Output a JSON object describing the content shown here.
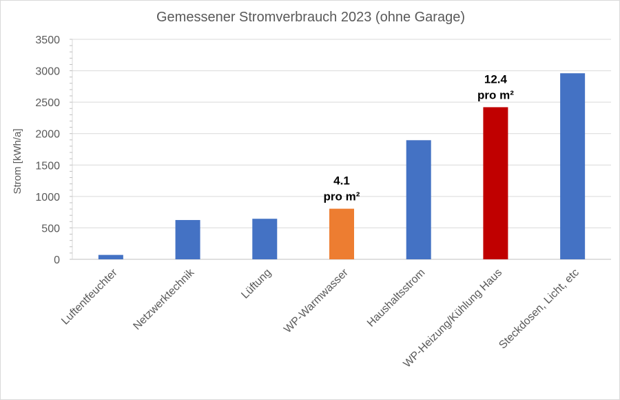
{
  "chart_data": {
    "type": "bar",
    "title": "Gemessener Stromverbrauch 2023 (ohne Garage)",
    "ylabel": "Strom [kWh/a]",
    "xlabel": "",
    "ylim": [
      0,
      3500
    ],
    "yticks": [
      0,
      500,
      1000,
      1500,
      2000,
      2500,
      3000,
      3500
    ],
    "grid": true,
    "categories": [
      "Luftentfeuchter",
      "Netzwerktechnik",
      "Lüftung",
      "WP-Warmwasser",
      "Haushaltsstrom",
      "WP-Heizung/Kühlung Haus",
      "Steckdosen, Licht, etc"
    ],
    "values": [
      70,
      625,
      645,
      805,
      1895,
      2420,
      2960
    ],
    "colors": [
      "#4472c4",
      "#4472c4",
      "#4472c4",
      "#ed7d31",
      "#4472c4",
      "#c00000",
      "#4472c4"
    ],
    "annotations": [
      {
        "category_index": 3,
        "lines": [
          "4.1",
          "pro m²"
        ]
      },
      {
        "category_index": 5,
        "lines": [
          "12.4",
          "pro m²"
        ]
      }
    ]
  }
}
